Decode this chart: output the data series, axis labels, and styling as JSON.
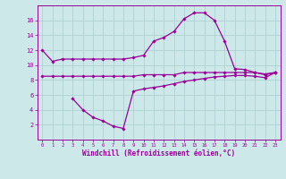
{
  "x_ticks": [
    0,
    1,
    2,
    3,
    4,
    5,
    6,
    7,
    8,
    9,
    10,
    11,
    12,
    13,
    14,
    15,
    16,
    17,
    18,
    19,
    20,
    21,
    22,
    23
  ],
  "line1_x": [
    0,
    1,
    2,
    3,
    4,
    5,
    6,
    7,
    8,
    9,
    10,
    11,
    12,
    13,
    14,
    15,
    16,
    17,
    18,
    19,
    20,
    21,
    22,
    23
  ],
  "line1_y": [
    12.0,
    10.5,
    10.8,
    10.8,
    10.8,
    10.8,
    10.8,
    10.8,
    10.8,
    11.0,
    11.3,
    13.2,
    13.7,
    14.5,
    16.2,
    17.0,
    17.0,
    16.0,
    13.2,
    9.5,
    9.4,
    9.0,
    8.7,
    9.0
  ],
  "line2_x": [
    0,
    1,
    2,
    3,
    4,
    5,
    6,
    7,
    8,
    9,
    10,
    11,
    12,
    13,
    14,
    15,
    16,
    17,
    18,
    19,
    20,
    21,
    22,
    23
  ],
  "line2_y": [
    8.5,
    8.5,
    8.5,
    8.5,
    8.5,
    8.5,
    8.5,
    8.5,
    8.5,
    8.5,
    8.7,
    8.7,
    8.7,
    8.7,
    9.0,
    9.0,
    9.0,
    9.0,
    9.0,
    9.0,
    9.0,
    9.0,
    8.8,
    9.0
  ],
  "line3_x": [
    3,
    4,
    5,
    6,
    7,
    8,
    9,
    10,
    11,
    12,
    13,
    14,
    15,
    16,
    17,
    18,
    19,
    20,
    21,
    22,
    23
  ],
  "line3_y": [
    5.5,
    4.0,
    3.0,
    2.5,
    1.8,
    1.5,
    6.5,
    6.8,
    7.0,
    7.2,
    7.5,
    7.8,
    8.0,
    8.2,
    8.4,
    8.5,
    8.6,
    8.6,
    8.5,
    8.3,
    9.0
  ],
  "line_color": "#990099",
  "bg_color": "#cce8e8",
  "grid_color": "#aacece",
  "xlabel": "Windchill (Refroidissement éolien,°C)",
  "ylim": [
    0,
    18
  ],
  "xlim": [
    -0.5,
    23.5
  ],
  "yticks": [
    2,
    4,
    6,
    8,
    10,
    12,
    14,
    16
  ],
  "xtick_fontsize": 4.0,
  "ytick_fontsize": 5.0,
  "xlabel_fontsize": 5.5,
  "marker": "D",
  "markersize": 1.8,
  "linewidth": 0.9
}
